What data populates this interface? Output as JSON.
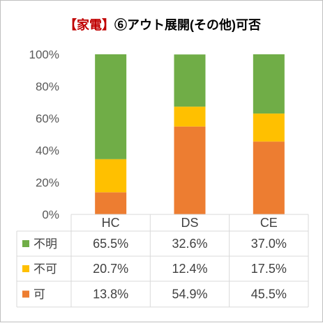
{
  "chart_data": {
    "type": "bar",
    "stacked": true,
    "title_prefix": "【家電】",
    "title_main": "⑥アウト展開(その他)可否",
    "categories": [
      "HC",
      "DS",
      "CE"
    ],
    "ylim": [
      0,
      100
    ],
    "y_ticks": [
      "0%",
      "20%",
      "40%",
      "60%",
      "80%",
      "100%"
    ],
    "series": [
      {
        "name": "可",
        "color": "#ed7d31",
        "values": [
          13.8,
          54.9,
          45.5
        ],
        "labels": [
          "13.8%",
          "54.9%",
          "45.5%"
        ]
      },
      {
        "name": "不可",
        "color": "#ffc000",
        "values": [
          20.7,
          12.4,
          17.5
        ],
        "labels": [
          "20.7%",
          "12.4%",
          "17.5%"
        ]
      },
      {
        "name": "不明",
        "color": "#70ad47",
        "values": [
          65.5,
          32.6,
          37.0
        ],
        "labels": [
          "65.5%",
          "32.6%",
          "37.0%"
        ]
      }
    ],
    "table_row_order": [
      "不明",
      "不可",
      "可"
    ],
    "grid": false,
    "legend": "data-table"
  },
  "colors": {
    "title_prefix": "#c00000",
    "title_main": "#000000",
    "axis_text": "#595959"
  }
}
